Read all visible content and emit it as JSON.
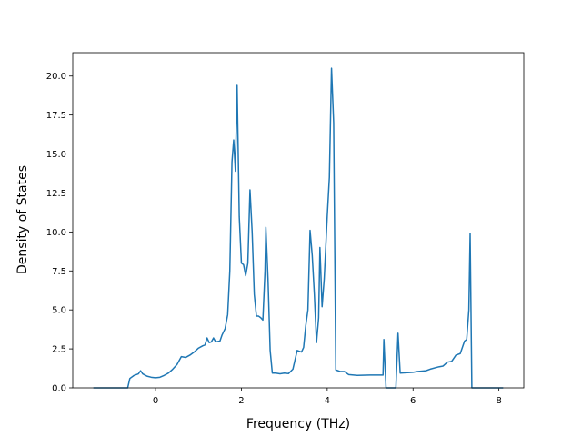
{
  "chart_data": {
    "type": "line",
    "xlabel": "Frequency (THz)",
    "ylabel": "Density of States",
    "xlim": [
      -1.93,
      8.58
    ],
    "ylim": [
      0,
      21.5
    ],
    "xticks": [
      0,
      2,
      4,
      6,
      8
    ],
    "yticks": [
      {
        "value": 0,
        "label": "0.0"
      },
      {
        "value": 2.5,
        "label": "2.5"
      },
      {
        "value": 5,
        "label": "5.0"
      },
      {
        "value": 7.5,
        "label": "7.5"
      },
      {
        "value": 10,
        "label": "10.0"
      },
      {
        "value": 12.5,
        "label": "12.5"
      },
      {
        "value": 15,
        "label": "15.0"
      },
      {
        "value": 17.5,
        "label": "17.5"
      },
      {
        "value": 20,
        "label": "20.0"
      }
    ],
    "grid": false,
    "series": [
      {
        "color": "#1f77b4",
        "x": [
          -1.45,
          -0.65,
          -0.6,
          -0.5,
          -0.4,
          -0.35,
          -0.3,
          -0.2,
          -0.1,
          0,
          0.1,
          0.2,
          0.3,
          0.4,
          0.5,
          0.6,
          0.7,
          0.8,
          0.9,
          1.0,
          1.1,
          1.15,
          1.2,
          1.25,
          1.3,
          1.35,
          1.4,
          1.5,
          1.55,
          1.62,
          1.68,
          1.73,
          1.78,
          1.82,
          1.86,
          1.9,
          1.95,
          2.0,
          2.05,
          2.1,
          2.15,
          2.2,
          2.25,
          2.3,
          2.35,
          2.4,
          2.45,
          2.5,
          2.55,
          2.57,
          2.62,
          2.67,
          2.72,
          2.8,
          2.9,
          3.0,
          3.1,
          3.2,
          3.3,
          3.4,
          3.45,
          3.5,
          3.55,
          3.6,
          3.65,
          3.7,
          3.75,
          3.8,
          3.83,
          3.88,
          3.93,
          4.0,
          4.05,
          4.1,
          4.15,
          4.2,
          4.3,
          4.4,
          4.5,
          4.7,
          5.0,
          5.3,
          5.32,
          5.37,
          5.6,
          5.65,
          5.7,
          6.0,
          6.1,
          6.3,
          6.4,
          6.6,
          6.7,
          6.8,
          6.9,
          7.0,
          7.1,
          7.2,
          7.25,
          7.3,
          7.33,
          7.37,
          8.1
        ],
        "values": [
          0,
          0,
          0.6,
          0.8,
          0.9,
          1.1,
          0.9,
          0.75,
          0.68,
          0.65,
          0.68,
          0.8,
          0.95,
          1.2,
          1.5,
          2.0,
          1.95,
          2.1,
          2.3,
          2.55,
          2.7,
          2.75,
          3.2,
          2.9,
          2.95,
          3.2,
          2.95,
          3.0,
          3.4,
          3.8,
          4.7,
          7.5,
          14.5,
          15.9,
          13.9,
          19.4,
          11.0,
          8.0,
          7.9,
          7.2,
          8.0,
          12.7,
          10.0,
          6.0,
          4.6,
          4.6,
          4.5,
          4.35,
          7.5,
          10.3,
          7.0,
          2.4,
          0.95,
          0.95,
          0.9,
          0.95,
          0.92,
          1.2,
          2.4,
          2.3,
          2.6,
          4.0,
          5.0,
          10.1,
          8.5,
          6.0,
          2.9,
          4.5,
          9.0,
          5.2,
          7.0,
          11.0,
          13.5,
          20.5,
          17.0,
          1.15,
          1.05,
          1.05,
          0.85,
          0.8,
          0.82,
          0.82,
          3.1,
          0,
          0,
          3.5,
          0.95,
          1.0,
          1.05,
          1.1,
          1.2,
          1.35,
          1.4,
          1.65,
          1.7,
          2.1,
          2.2,
          3.0,
          3.1,
          5.0,
          9.9,
          0,
          0
        ]
      }
    ]
  }
}
